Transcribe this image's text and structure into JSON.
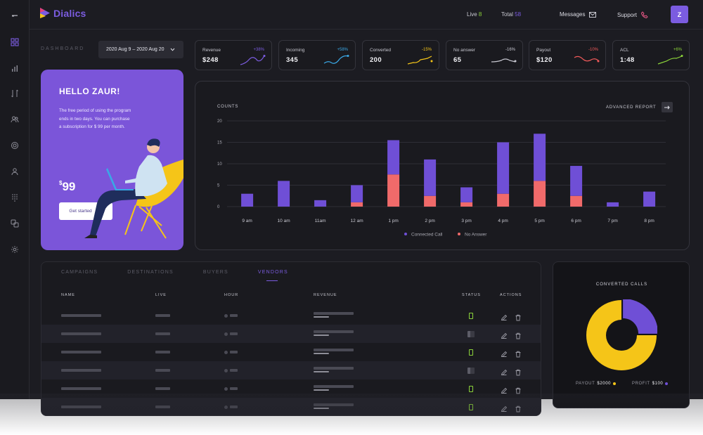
{
  "app": {
    "name": "Dialics"
  },
  "header": {
    "live_label": "Live",
    "live_value": "8",
    "total_label": "Total",
    "total_value": "58",
    "messages_label": "Messages",
    "support_label": "Support",
    "avatar_initial": "Z"
  },
  "dashboard": {
    "label": "DASHBOARD",
    "date_range": "2020 Aug 9 – 2020 Aug 20"
  },
  "kpis": [
    {
      "label": "Revenue",
      "value": "$248",
      "delta": "+38%",
      "color": "#7b5ce0"
    },
    {
      "label": "Incoming",
      "value": "345",
      "delta": "+58%",
      "color": "#3aa8e6"
    },
    {
      "label": "Converted",
      "value": "200",
      "delta": "-15%",
      "color": "#f5c518"
    },
    {
      "label": "No answer",
      "value": "65",
      "delta": "-16%",
      "color": "#c9c9d2"
    },
    {
      "label": "Payout",
      "value": "$120",
      "delta": "-10%",
      "color": "#f05a5a"
    },
    {
      "label": "ACL",
      "value": "1:48",
      "delta": "+6%",
      "color": "#8cd43a"
    }
  ],
  "promo": {
    "title": "HELLO ZAUR!",
    "text": "The free period of using the program ends in two days. You can purchase a subscription for $ 99 per month.",
    "currency": "$",
    "price": "99",
    "button": "Get started"
  },
  "chart_data": {
    "type": "bar",
    "stacked": true,
    "ylabel": "COUNTS",
    "ylim": [
      0,
      20
    ],
    "yticks": [
      0,
      5,
      10,
      15,
      20
    ],
    "categories": [
      "9 am",
      "10 am",
      "11am",
      "12 am",
      "1 pm",
      "2 pm",
      "3 pm",
      "4 pm",
      "5 pm",
      "6 pm",
      "7 pm",
      "8 pm"
    ],
    "series": [
      {
        "name": "No Answer",
        "color": "#f06a6a",
        "values": [
          0,
          0,
          0,
          1,
          7.5,
          2.5,
          1,
          3,
          6,
          2.5,
          0,
          0
        ]
      },
      {
        "name": "Connected Call",
        "color": "#6f4fd6",
        "values": [
          3,
          6,
          1.5,
          4,
          8,
          8.5,
          3.5,
          12,
          11,
          7,
          1,
          3.5
        ]
      }
    ],
    "grid": true,
    "legend": "bottom-center",
    "action": "ADVANCED REPORT"
  },
  "table": {
    "tabs": [
      "CAMPAIGNS",
      "DESTINATIONS",
      "BUYERS",
      "VENDORS"
    ],
    "active_tab": 3,
    "columns": [
      "NAME",
      "LIVE",
      "HOUR",
      "REVENUE",
      "STATUS",
      "ACTIONS"
    ],
    "rows": [
      {
        "status": "on"
      },
      {
        "status": "off"
      },
      {
        "status": "on"
      },
      {
        "status": "off"
      },
      {
        "status": "on"
      },
      {
        "status": "on"
      }
    ]
  },
  "donut": {
    "title": "CONVERTED CALLS",
    "payout_label": "PAYOUT",
    "payout_value": "$2000",
    "payout_color": "#f5c518",
    "profit_label": "PROFIT",
    "profit_value": "$100",
    "profit_color": "#6f4fd6",
    "profit_fraction": 0.25
  }
}
